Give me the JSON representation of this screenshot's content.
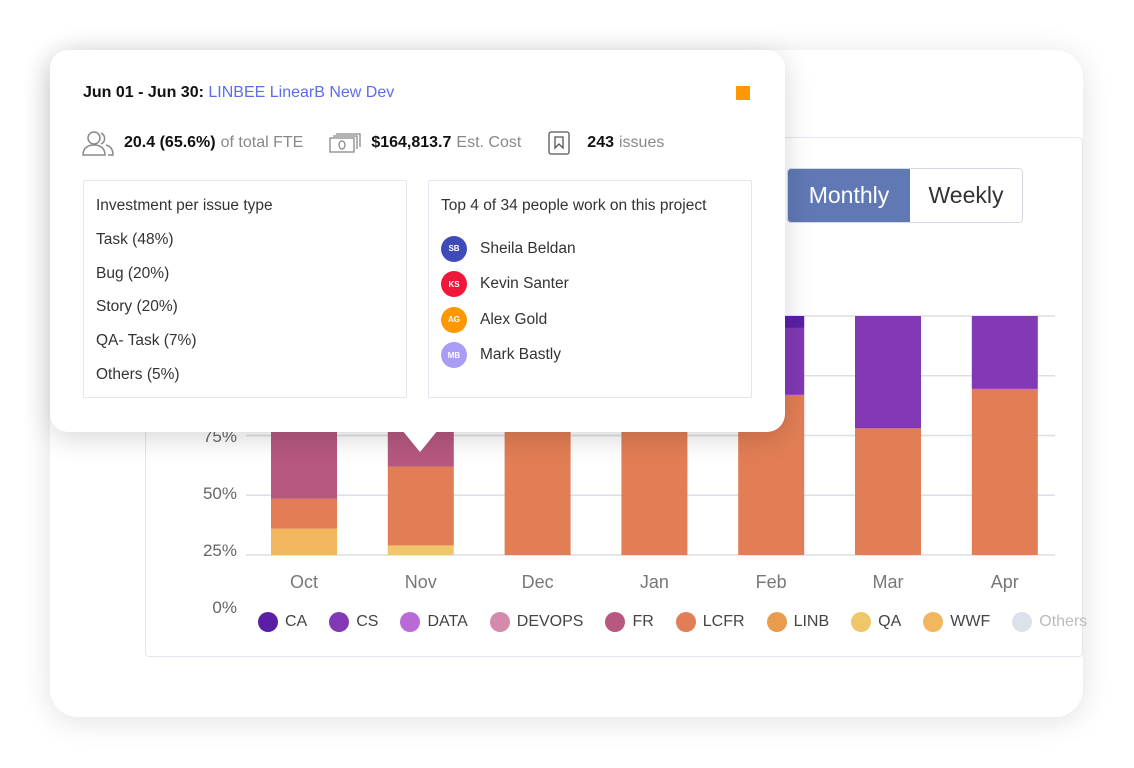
{
  "controls": {
    "monthly": "Monthly",
    "weekly": "Weekly"
  },
  "tooltip": {
    "date_range": "Jun 01 - Jun 30:",
    "project": "LINBEE LinearB New Dev",
    "marker_color": "#ff9800",
    "fte_value": "20.4 (65.6%)",
    "fte_label": "of total FTE",
    "cost_value": "$164,813.7",
    "cost_label": "Est. Cost",
    "issues_value": "243",
    "issues_label": "issues",
    "investment": {
      "title": "Investment per issue type",
      "items": [
        "Task (48%)",
        "Bug (20%)",
        "Story (20%)",
        "QA- Task (7%)",
        "Others (5%)"
      ]
    },
    "people": {
      "title": "Top 4 of 34 people work on this project",
      "items": [
        {
          "initials": "SB",
          "name": "Sheila Beldan",
          "color": "#3f4bb8"
        },
        {
          "initials": "KS",
          "name": "Kevin Santer",
          "color": "#f0183a"
        },
        {
          "initials": "AG",
          "name": "Alex Gold",
          "color": "#ff9800"
        },
        {
          "initials": "MB",
          "name": "Mark Bastly",
          "color": "#a99cf5"
        }
      ]
    }
  },
  "chart_data": {
    "type": "bar",
    "stacked": true,
    "categories": [
      "Oct",
      "Nov",
      "Dec",
      "Jan",
      "Feb",
      "Mar",
      "Apr"
    ],
    "ytick_labels": [
      "0%",
      "25%",
      "50%",
      "75%"
    ],
    "ylim": [
      0,
      100
    ],
    "series": [
      {
        "name": "CA",
        "color": "#5b1fa6",
        "values": [
          0,
          0,
          0,
          0,
          5,
          0,
          0
        ]
      },
      {
        "name": "CS",
        "color": "#8339b5",
        "values": [
          0,
          0,
          0,
          0,
          28,
          47,
          30.5
        ]
      },
      {
        "name": "DATA",
        "color": "#b96ad6",
        "values": [
          0,
          0,
          0,
          0,
          0,
          0,
          0
        ]
      },
      {
        "name": "DEVOPS",
        "color": "#d48aab",
        "values": [
          0,
          0,
          0,
          0,
          0,
          0,
          0
        ]
      },
      {
        "name": "FR",
        "color": "#b65880",
        "values": [
          76.5,
          63,
          0,
          0,
          0,
          0,
          0
        ]
      },
      {
        "name": "LCFR",
        "color": "#e27e55",
        "values": [
          12.5,
          33,
          100,
          100,
          67,
          53,
          69.5
        ]
      },
      {
        "name": "LINB",
        "color": "#e89c4d",
        "values": [
          0,
          0,
          0,
          0,
          0,
          0,
          0
        ]
      },
      {
        "name": "QA",
        "color": "#f0c66a",
        "values": [
          0,
          4,
          0,
          0,
          0,
          0,
          0
        ]
      },
      {
        "name": "WWF",
        "color": "#f2b75e",
        "values": [
          11,
          0,
          0,
          0,
          0,
          0,
          0
        ]
      },
      {
        "name": "Others",
        "color": "#dde1ea",
        "values": [
          0,
          0,
          0,
          0,
          0,
          0,
          0
        ]
      }
    ]
  }
}
